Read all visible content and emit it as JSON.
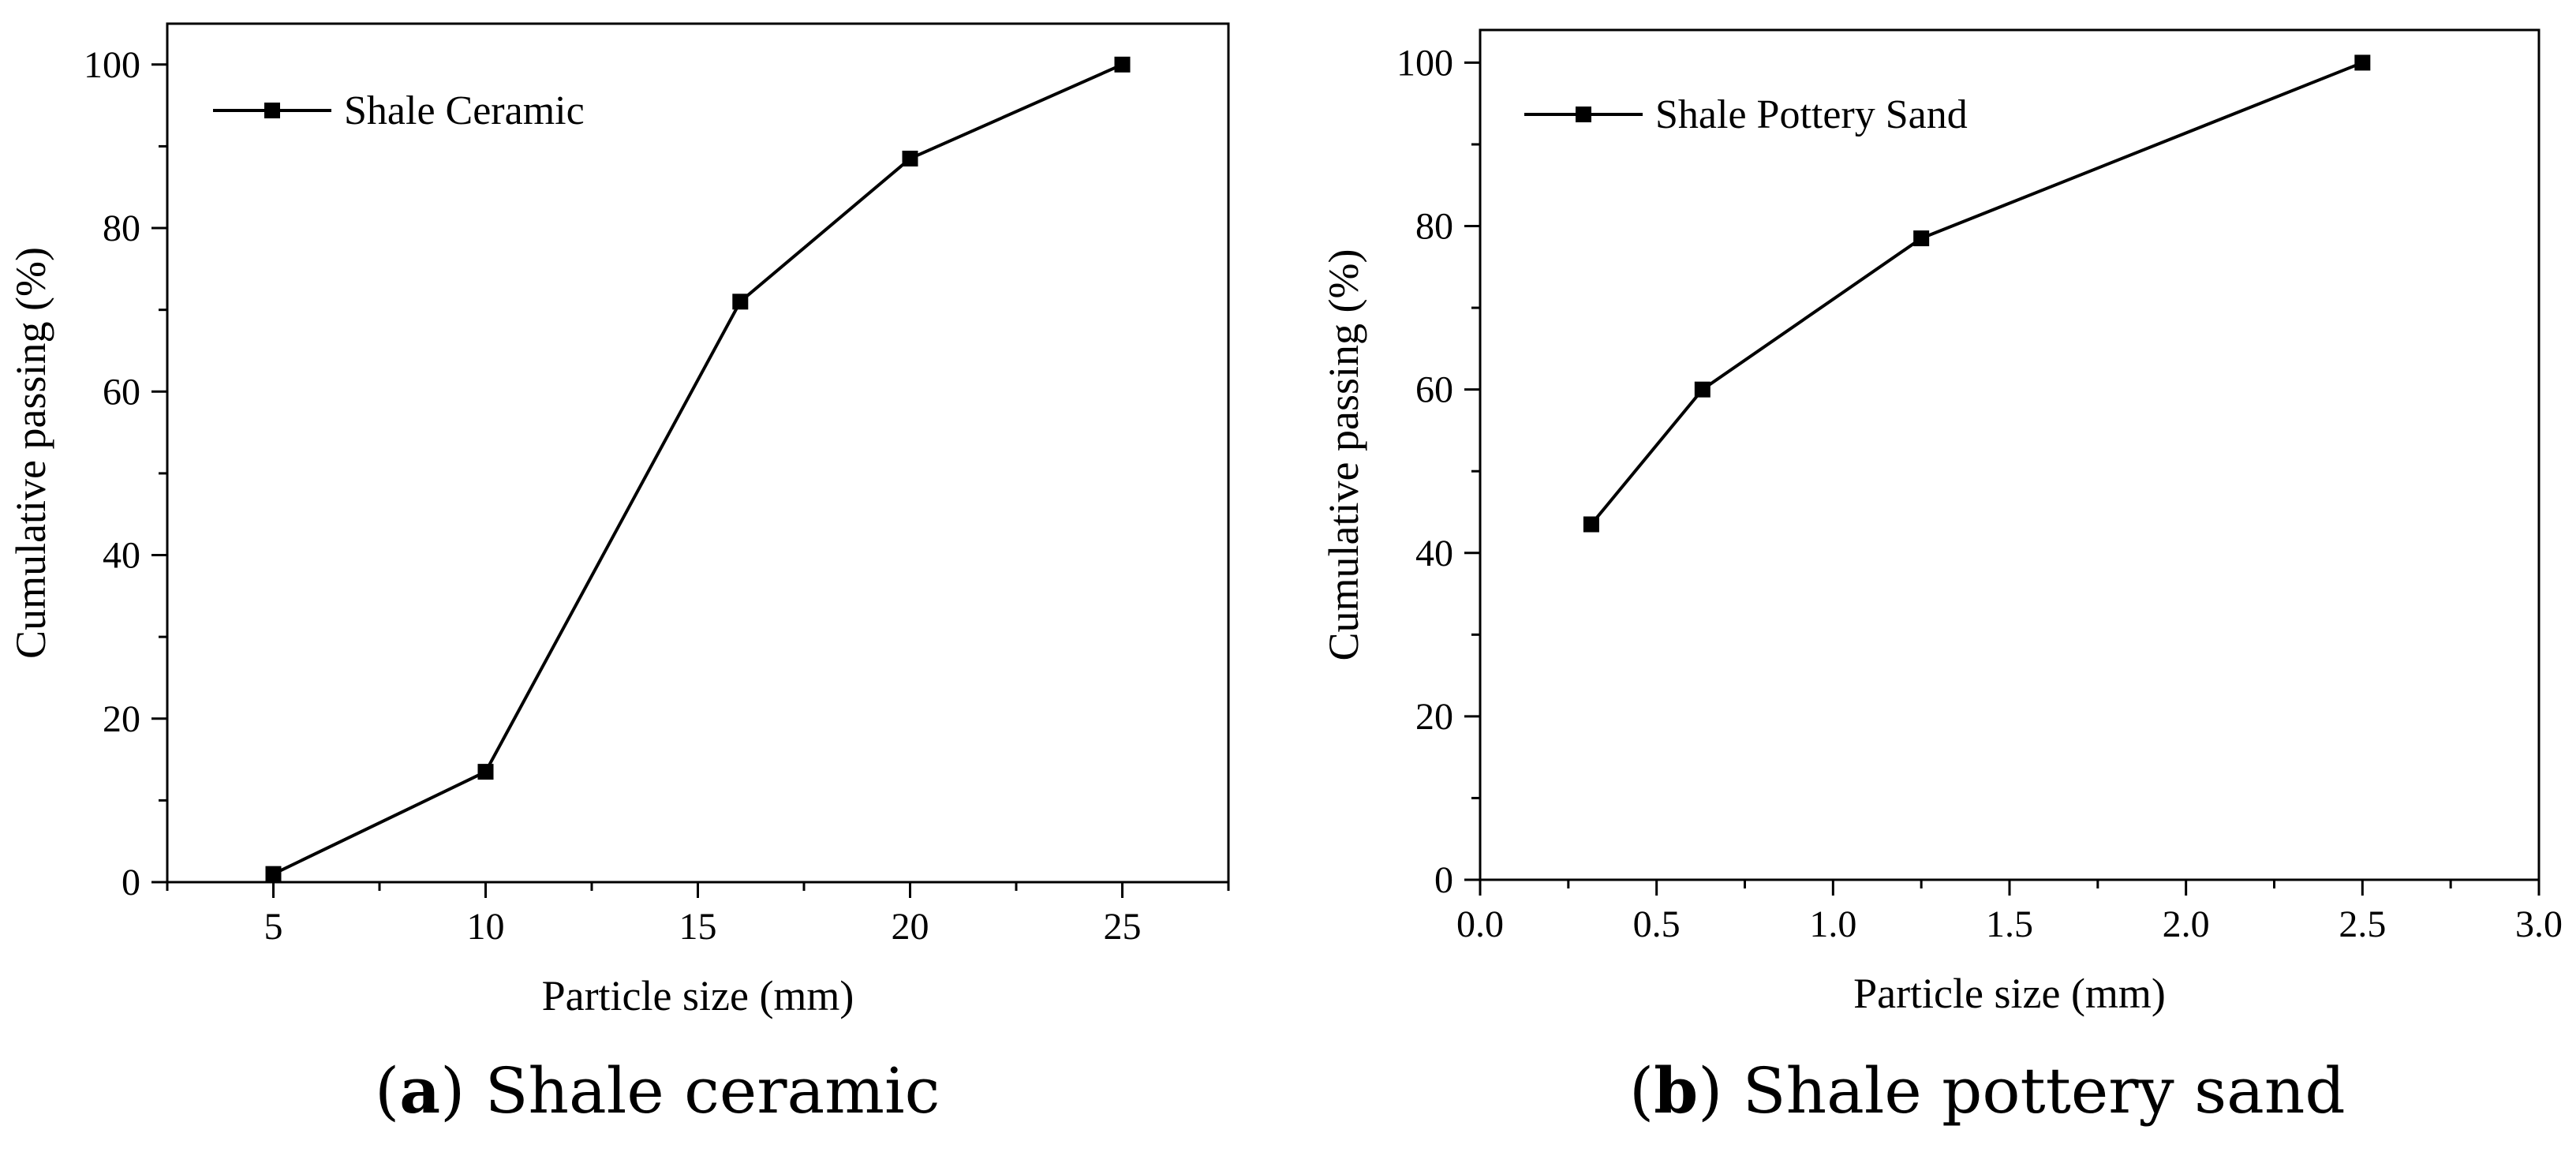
{
  "colors": {
    "line": "#000000",
    "marker": "#000000",
    "background": "#ffffff"
  },
  "captions": [
    {
      "letter": "a",
      "text": "Shale ceramic"
    },
    {
      "letter": "b",
      "text": "Shale pottery sand"
    }
  ],
  "chart_data": [
    {
      "type": "line",
      "xlabel": "Particle size (mm)",
      "ylabel": "Cumulative passing (%)",
      "xlim": [
        2.5,
        27.5
      ],
      "ylim": [
        0,
        105
      ],
      "xticks": [
        5,
        10,
        15,
        20,
        25
      ],
      "xtick_labels": [
        "5",
        "10",
        "15",
        "20",
        "25"
      ],
      "xminor": [
        2.5,
        7.5,
        12.5,
        17.5,
        22.5,
        27.5
      ],
      "yticks": [
        0,
        20,
        40,
        60,
        80,
        100
      ],
      "ytick_labels": [
        "0",
        "20",
        "40",
        "60",
        "80",
        "100"
      ],
      "yminor": [
        10,
        30,
        50,
        70,
        90
      ],
      "grid": false,
      "legend": "top-left",
      "series": [
        {
          "name": "Shale Ceramic",
          "marker": "square",
          "x": [
            5,
            10,
            16,
            20,
            25
          ],
          "y": [
            1,
            13.5,
            71,
            88.5,
            100
          ]
        }
      ]
    },
    {
      "type": "line",
      "xlabel": "Particle size (mm)",
      "ylabel": "Cumulative passing (%)",
      "xlim": [
        0,
        3.0
      ],
      "ylim": [
        0,
        104
      ],
      "xticks": [
        0.0,
        0.5,
        1.0,
        1.5,
        2.0,
        2.5,
        3.0
      ],
      "xtick_labels": [
        "0.0",
        "0.5",
        "1.0",
        "1.5",
        "2.0",
        "2.5",
        "3.0"
      ],
      "xminor": [
        0.25,
        0.75,
        1.25,
        1.75,
        2.25,
        2.75
      ],
      "yticks": [
        0,
        20,
        40,
        60,
        80,
        100
      ],
      "ytick_labels": [
        "0",
        "20",
        "40",
        "60",
        "80",
        "100"
      ],
      "yminor": [
        10,
        30,
        50,
        70,
        90
      ],
      "grid": false,
      "legend": "top-left",
      "series": [
        {
          "name": "Shale Pottery Sand",
          "marker": "square",
          "x": [
            0.315,
            0.63,
            1.25,
            2.5
          ],
          "y": [
            43.5,
            60,
            78.5,
            100
          ]
        }
      ]
    }
  ]
}
